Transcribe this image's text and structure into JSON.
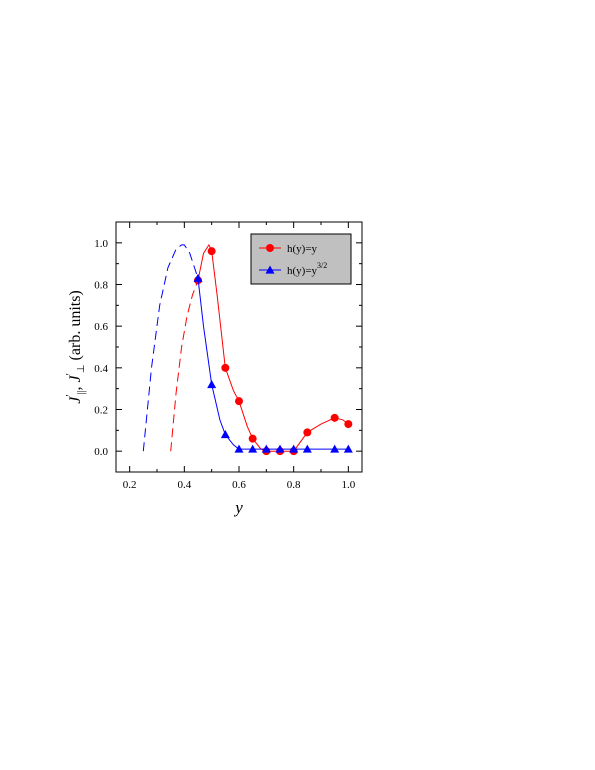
{
  "chart_data": {
    "type": "line",
    "xlabel": "y",
    "ylabel_parts": [
      "J",
      "′",
      "||",
      ", J",
      "′",
      "⊥",
      " (arb. units)"
    ],
    "xlim": [
      0.15,
      1.05
    ],
    "ylim": [
      -0.1,
      1.1
    ],
    "xticks": [
      "0.2",
      "0.4",
      "0.6",
      "0.8",
      "1.0"
    ],
    "xtick_values": [
      0.2,
      0.4,
      0.6,
      0.8,
      1.0
    ],
    "yticks": [
      "0.0",
      "0.2",
      "0.4",
      "0.6",
      "0.8",
      "1.0"
    ],
    "ytick_values": [
      0.0,
      0.2,
      0.4,
      0.6,
      0.8,
      1.0
    ],
    "legend_position": "top-right",
    "series": [
      {
        "name": "h(y)=y",
        "legend_base": "h(y)=y",
        "legend_sup": "",
        "color": "#ff0000",
        "marker": "circle",
        "points_x": [
          0.45,
          0.5,
          0.55,
          0.6,
          0.65,
          0.7,
          0.75,
          0.8,
          0.85,
          0.95,
          1.0
        ],
        "points_y": [
          0.82,
          0.96,
          0.4,
          0.24,
          0.06,
          0.0,
          0.0,
          0.0,
          0.09,
          0.16,
          0.13
        ],
        "solid_x": [
          0.45,
          0.47,
          0.49,
          0.5,
          0.52,
          0.55,
          0.58,
          0.6,
          0.63,
          0.65,
          0.68,
          0.7,
          0.75,
          0.8,
          0.85,
          0.9,
          0.95,
          0.98,
          1.0
        ],
        "solid_y": [
          0.82,
          0.95,
          0.99,
          0.96,
          0.75,
          0.4,
          0.29,
          0.24,
          0.12,
          0.06,
          0.01,
          0.0,
          0.0,
          0.0,
          0.09,
          0.13,
          0.16,
          0.15,
          0.13
        ],
        "dash_x": [
          0.35,
          0.37,
          0.39,
          0.41,
          0.43,
          0.45
        ],
        "dash_y": [
          0.0,
          0.28,
          0.5,
          0.65,
          0.75,
          0.82
        ]
      },
      {
        "name": "h(y)=y^3/2",
        "legend_base": "h(y)=y",
        "legend_sup": "3/2",
        "color": "#0000ff",
        "marker": "triangle",
        "points_x": [
          0.45,
          0.5,
          0.55,
          0.6,
          0.65,
          0.7,
          0.75,
          0.8,
          0.85,
          0.95,
          1.0
        ],
        "points_y": [
          0.83,
          0.32,
          0.08,
          0.01,
          0.01,
          0.01,
          0.01,
          0.01,
          0.01,
          0.01,
          0.01
        ],
        "solid_x": [
          0.45,
          0.47,
          0.5,
          0.53,
          0.55,
          0.58,
          0.6,
          0.65,
          0.7,
          0.8,
          0.9,
          1.0
        ],
        "solid_y": [
          0.83,
          0.6,
          0.32,
          0.15,
          0.08,
          0.03,
          0.01,
          0.01,
          0.01,
          0.01,
          0.01,
          0.01
        ],
        "dash_x": [
          0.25,
          0.28,
          0.31,
          0.34,
          0.37,
          0.39,
          0.4,
          0.42,
          0.45
        ],
        "dash_y": [
          0.0,
          0.4,
          0.7,
          0.88,
          0.97,
          0.99,
          0.99,
          0.95,
          0.83
        ]
      }
    ]
  }
}
